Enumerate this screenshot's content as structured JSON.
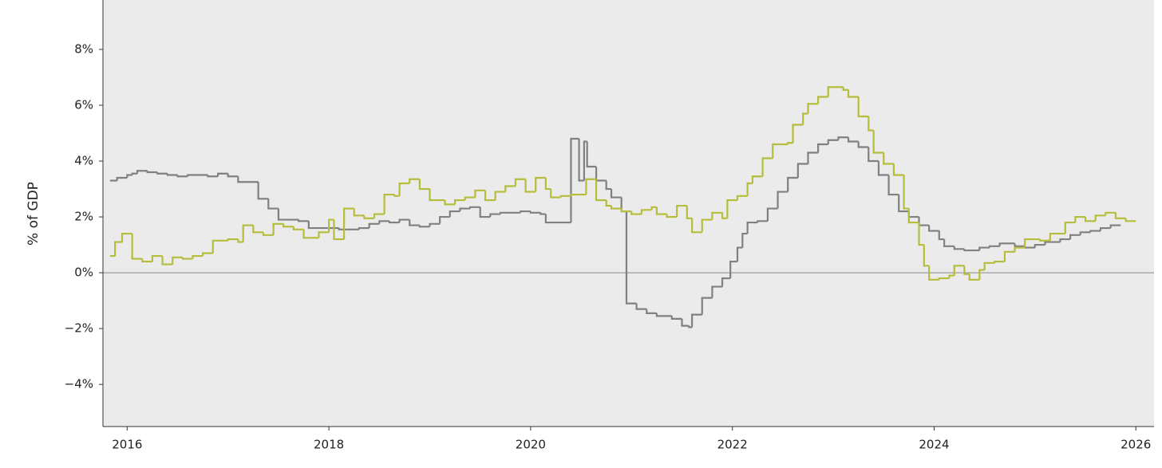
{
  "chart_data": {
    "type": "step",
    "y_label": "% of GDP",
    "xlim": [
      2015.76,
      2026.18
    ],
    "ylim": [
      -5.51,
      9.77
    ],
    "xticks": [
      2016,
      2018,
      2020,
      2022,
      2024,
      2026
    ],
    "yticks": [
      {
        "value": -4,
        "label": "−4%"
      },
      {
        "value": -2,
        "label": "−2%"
      },
      {
        "value": 0,
        "label": "0%"
      },
      {
        "value": 2,
        "label": "2%"
      },
      {
        "value": 4,
        "label": "4%"
      },
      {
        "value": 6,
        "label": "6%"
      },
      {
        "value": 8,
        "label": "8%"
      }
    ],
    "zero_line": true,
    "series": [
      {
        "color": "#808080",
        "x": [
          2015.83,
          2015.9,
          2016.0,
          2016.05,
          2016.1,
          2016.2,
          2016.3,
          2016.4,
          2016.5,
          2016.6,
          2016.8,
          2016.9,
          2017.0,
          2017.1,
          2017.3,
          2017.4,
          2017.5,
          2017.7,
          2017.8,
          2018.0,
          2018.1,
          2018.3,
          2018.4,
          2018.5,
          2018.6,
          2018.7,
          2018.8,
          2018.9,
          2019.0,
          2019.1,
          2019.2,
          2019.3,
          2019.4,
          2019.5,
          2019.6,
          2019.7,
          2019.9,
          2020.0,
          2020.1,
          2020.15,
          2020.4,
          2020.48,
          2020.53,
          2020.56,
          2020.65,
          2020.75,
          2020.8,
          2020.9,
          2020.95,
          2021.05,
          2021.15,
          2021.25,
          2021.4,
          2021.5,
          2021.57,
          2021.6,
          2021.7,
          2021.8,
          2021.9,
          2021.98,
          2022.05,
          2022.1,
          2022.15,
          2022.25,
          2022.35,
          2022.45,
          2022.55,
          2022.65,
          2022.75,
          2022.85,
          2022.95,
          2023.05,
          2023.15,
          2023.25,
          2023.35,
          2023.45,
          2023.55,
          2023.65,
          2023.75,
          2023.85,
          2023.95,
          2024.05,
          2024.1,
          2024.2,
          2024.3,
          2024.45,
          2024.55,
          2024.65,
          2024.8,
          2024.9,
          2025.0,
          2025.1,
          2025.25,
          2025.35,
          2025.45,
          2025.55,
          2025.65,
          2025.75
        ],
        "values": [
          3.3,
          3.4,
          3.5,
          3.55,
          3.65,
          3.6,
          3.55,
          3.5,
          3.45,
          3.5,
          3.45,
          3.55,
          3.45,
          3.25,
          2.65,
          2.3,
          1.9,
          1.85,
          1.6,
          1.6,
          1.55,
          1.6,
          1.75,
          1.85,
          1.8,
          1.9,
          1.7,
          1.65,
          1.75,
          2.0,
          2.2,
          2.3,
          2.35,
          2.0,
          2.1,
          2.15,
          2.2,
          2.15,
          2.1,
          1.8,
          4.8,
          3.3,
          4.7,
          3.8,
          3.3,
          3.0,
          2.7,
          2.2,
          -1.1,
          -1.3,
          -1.45,
          -1.55,
          -1.65,
          -1.9,
          -1.95,
          -1.5,
          -0.9,
          -0.5,
          -0.2,
          0.4,
          0.9,
          1.4,
          1.8,
          1.85,
          2.3,
          2.9,
          3.4,
          3.9,
          4.3,
          4.6,
          4.75,
          4.85,
          4.7,
          4.5,
          4.0,
          3.5,
          2.8,
          2.2,
          2.0,
          1.7,
          1.5,
          1.2,
          0.95,
          0.85,
          0.8,
          0.9,
          0.95,
          1.05,
          0.95,
          0.9,
          1.0,
          1.1,
          1.2,
          1.35,
          1.45,
          1.5,
          1.6,
          1.7
        ]
      },
      {
        "color": "#b5bd3a",
        "x": [
          2015.83,
          2015.88,
          2015.95,
          2016.05,
          2016.15,
          2016.25,
          2016.35,
          2016.45,
          2016.55,
          2016.65,
          2016.75,
          2016.85,
          2017.0,
          2017.1,
          2017.15,
          2017.25,
          2017.35,
          2017.45,
          2017.55,
          2017.65,
          2017.75,
          2017.9,
          2018.0,
          2018.05,
          2018.15,
          2018.25,
          2018.35,
          2018.45,
          2018.55,
          2018.65,
          2018.7,
          2018.8,
          2018.9,
          2019.0,
          2019.15,
          2019.25,
          2019.35,
          2019.45,
          2019.55,
          2019.65,
          2019.75,
          2019.85,
          2019.95,
          2020.05,
          2020.15,
          2020.2,
          2020.3,
          2020.4,
          2020.55,
          2020.65,
          2020.75,
          2020.8,
          2020.9,
          2021.0,
          2021.1,
          2021.2,
          2021.25,
          2021.35,
          2021.45,
          2021.55,
          2021.6,
          2021.7,
          2021.8,
          2021.9,
          2021.95,
          2022.05,
          2022.15,
          2022.2,
          2022.3,
          2022.4,
          2022.55,
          2022.6,
          2022.7,
          2022.75,
          2022.85,
          2022.95,
          2023.1,
          2023.15,
          2023.25,
          2023.35,
          2023.4,
          2023.5,
          2023.6,
          2023.7,
          2023.75,
          2023.85,
          2023.9,
          2023.95,
          2024.05,
          2024.15,
          2024.2,
          2024.3,
          2024.35,
          2024.45,
          2024.5,
          2024.6,
          2024.7,
          2024.8,
          2024.9,
          2025.05,
          2025.15,
          2025.3,
          2025.4,
          2025.5,
          2025.6,
          2025.7,
          2025.8,
          2025.9
        ],
        "values": [
          0.6,
          1.1,
          1.4,
          0.5,
          0.4,
          0.6,
          0.3,
          0.55,
          0.5,
          0.6,
          0.7,
          1.15,
          1.2,
          1.1,
          1.7,
          1.45,
          1.35,
          1.75,
          1.65,
          1.55,
          1.25,
          1.45,
          1.9,
          1.2,
          2.3,
          2.05,
          1.95,
          2.1,
          2.8,
          2.75,
          3.2,
          3.35,
          3.0,
          2.6,
          2.45,
          2.6,
          2.7,
          2.95,
          2.6,
          2.9,
          3.1,
          3.35,
          2.9,
          3.4,
          3.0,
          2.7,
          2.75,
          2.8,
          3.35,
          2.6,
          2.4,
          2.3,
          2.2,
          2.1,
          2.25,
          2.35,
          2.1,
          2.0,
          2.4,
          1.95,
          1.45,
          1.9,
          2.15,
          1.95,
          2.6,
          2.75,
          3.2,
          3.45,
          4.1,
          4.6,
          4.65,
          5.3,
          5.7,
          6.05,
          6.3,
          6.65,
          6.55,
          6.3,
          5.6,
          5.1,
          4.3,
          3.9,
          3.5,
          2.3,
          1.8,
          1.0,
          0.25,
          -0.25,
          -0.2,
          -0.1,
          0.25,
          -0.05,
          -0.25,
          0.1,
          0.35,
          0.4,
          0.75,
          0.9,
          1.2,
          1.15,
          1.4,
          1.8,
          2.0,
          1.85,
          2.05,
          2.15,
          1.95,
          1.85
        ]
      }
    ]
  }
}
